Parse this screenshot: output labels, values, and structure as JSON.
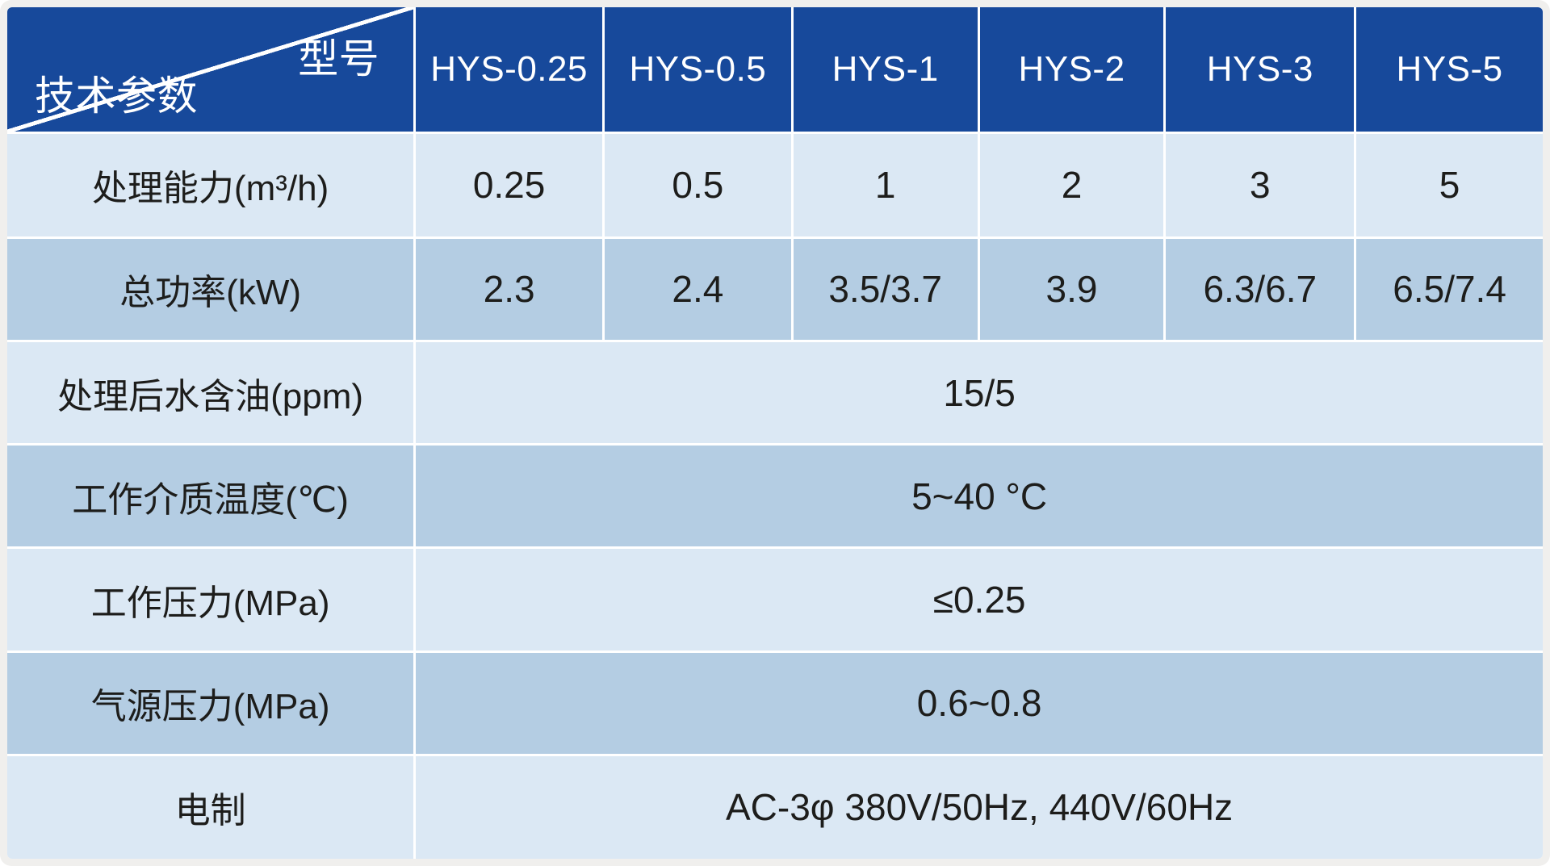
{
  "table": {
    "corner_top_right": "型号",
    "corner_bottom_left": "技术参数",
    "columns": [
      "HYS-0.25",
      "HYS-0.5",
      "HYS-1",
      "HYS-2",
      "HYS-3",
      "HYS-5"
    ],
    "rows": [
      {
        "label": "处理能力(m³/h)",
        "values": [
          "0.25",
          "0.5",
          "1",
          "2",
          "3",
          "5"
        ]
      },
      {
        "label": "总功率(kW)",
        "values": [
          "2.3",
          "2.4",
          "3.5/3.7",
          "3.9",
          "6.3/6.7",
          "6.5/7.4"
        ]
      },
      {
        "label": "处理后水含油(ppm)",
        "merged": "15/5"
      },
      {
        "label": "工作介质温度(℃)",
        "merged": "5~40 °C"
      },
      {
        "label": "工作压力(MPa)",
        "merged": "≤0.25"
      },
      {
        "label": "气源压力(MPa)",
        "merged": "0.6~0.8"
      },
      {
        "label": "电制",
        "merged": "AC-3φ 380V/50Hz, 440V/60Hz"
      }
    ],
    "colors": {
      "header_bg": "#17499b",
      "row_light": "#dbe8f4",
      "row_medium": "#b4cde3",
      "grid_line": "#ffffff",
      "frame": "#f0efed",
      "text_dark": "#1d1d1b",
      "text_light": "#ffffff"
    }
  },
  "chart_data": {
    "type": "table",
    "title": "HYS 系列技术参数表",
    "corner_header": {
      "top_right": "型号",
      "bottom_left": "技术参数"
    },
    "columns": [
      "技术参数",
      "HYS-0.25",
      "HYS-0.5",
      "HYS-1",
      "HYS-2",
      "HYS-3",
      "HYS-5"
    ],
    "rows": [
      {
        "parameter": "处理能力(m³/h)",
        "values": [
          "0.25",
          "0.5",
          "1",
          "2",
          "3",
          "5"
        ]
      },
      {
        "parameter": "总功率(kW)",
        "values": [
          "2.3",
          "2.4",
          "3.5/3.7",
          "3.9",
          "6.3/6.7",
          "6.5/7.4"
        ]
      },
      {
        "parameter": "处理后水含油(ppm)",
        "values": [
          "15/5"
        ],
        "merged_across_models": true
      },
      {
        "parameter": "工作介质温度(℃)",
        "values": [
          "5~40 °C"
        ],
        "merged_across_models": true
      },
      {
        "parameter": "工作压力(MPa)",
        "values": [
          "≤0.25"
        ],
        "merged_across_models": true
      },
      {
        "parameter": "气源压力(MPa)",
        "values": [
          "0.6~0.8"
        ],
        "merged_across_models": true
      },
      {
        "parameter": "电制",
        "values": [
          "AC-3φ 380V/50Hz, 440V/60Hz"
        ],
        "merged_across_models": true
      }
    ],
    "layout": {
      "header_style": "dark-blue, white text, diagonal split corner cell",
      "body_style": "alternating light/medium blue rows, white gridlines"
    }
  }
}
